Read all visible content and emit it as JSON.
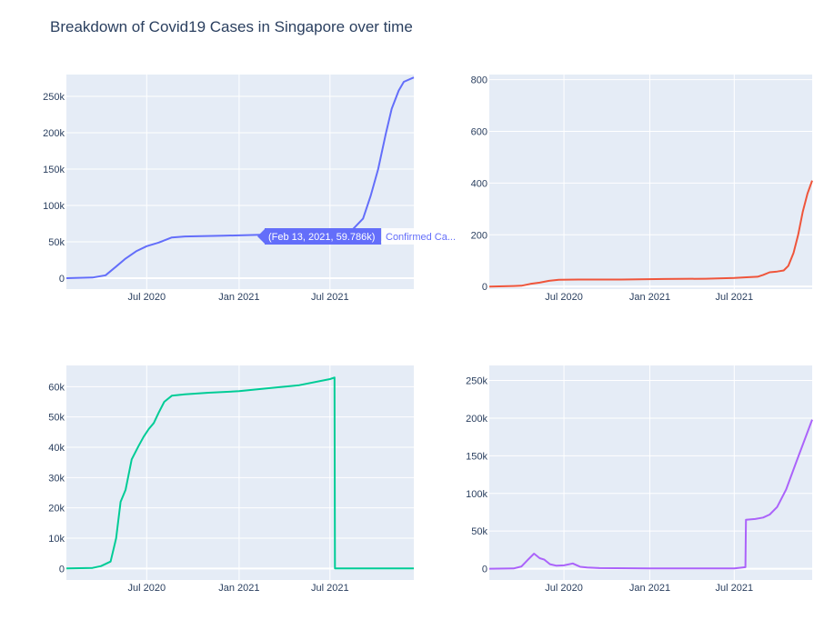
{
  "title": "Breakdown of Covid19 Cases in Singapore over time",
  "hover": {
    "label": "(Feb 13, 2021, 59.786k)",
    "series_label": "Confirmed Ca...",
    "color": "#636efa"
  },
  "chart_data": [
    {
      "type": "line",
      "panel": "top-left",
      "color": "#636efa",
      "x_ticks": [
        "Jul 2020",
        "Jan 2021",
        "Jul 2021"
      ],
      "y_ticks": [
        "0",
        "50k",
        "100k",
        "150k",
        "200k",
        "250k"
      ],
      "xlim": [
        "2020-01-23",
        "2021-12-15"
      ],
      "ylim": [
        -15000,
        280000
      ],
      "x": [
        "2020-01-23",
        "2020-03-15",
        "2020-04-10",
        "2020-05-01",
        "2020-05-20",
        "2020-06-10",
        "2020-07-01",
        "2020-07-25",
        "2020-08-20",
        "2020-09-15",
        "2020-12-01",
        "2021-02-13",
        "2021-04-01",
        "2021-06-01",
        "2021-07-15",
        "2021-08-15",
        "2021-09-05",
        "2021-09-20",
        "2021-10-05",
        "2021-10-20",
        "2021-11-01",
        "2021-11-15",
        "2021-11-25",
        "2021-12-15"
      ],
      "y": [
        0,
        900,
        4000,
        16000,
        27000,
        37000,
        44000,
        49000,
        56000,
        57400,
        58400,
        59786,
        61000,
        62300,
        64000,
        67000,
        82000,
        113000,
        150000,
        198000,
        233000,
        258000,
        270000,
        276000
      ]
    },
    {
      "type": "line",
      "panel": "top-right",
      "color": "#ef553b",
      "x_ticks": [
        "Jul 2020",
        "Jan 2021",
        "Jul 2021"
      ],
      "y_ticks": [
        "0",
        "200",
        "400",
        "600",
        "800"
      ],
      "xlim": [
        "2020-01-23",
        "2021-12-15"
      ],
      "ylim": [
        -10,
        820
      ],
      "x": [
        "2020-01-23",
        "2020-03-15",
        "2020-04-01",
        "2020-04-20",
        "2020-05-10",
        "2020-05-30",
        "2020-06-20",
        "2020-08-01",
        "2020-11-01",
        "2021-02-01",
        "2021-05-01",
        "2021-07-01",
        "2021-08-01",
        "2021-08-20",
        "2021-09-01",
        "2021-09-15",
        "2021-10-01",
        "2021-10-15",
        "2021-10-25",
        "2021-11-05",
        "2021-11-15",
        "2021-11-25",
        "2021-12-05",
        "2021-12-15"
      ],
      "y": [
        0,
        2,
        3,
        10,
        15,
        22,
        26,
        27,
        27,
        29,
        30,
        33,
        36,
        38,
        45,
        55,
        58,
        62,
        80,
        130,
        200,
        290,
        360,
        410
      ]
    },
    {
      "type": "line",
      "panel": "bottom-left",
      "color": "#00cc96",
      "x_ticks": [
        "Jul 2020",
        "Jan 2021",
        "Jul 2021"
      ],
      "y_ticks": [
        "0",
        "10k",
        "20k",
        "30k",
        "40k",
        "50k",
        "60k"
      ],
      "xlim": [
        "2020-01-23",
        "2021-12-15"
      ],
      "ylim": [
        -3800,
        67000
      ],
      "x": [
        "2020-01-23",
        "2020-03-15",
        "2020-04-01",
        "2020-04-10",
        "2020-04-20",
        "2020-05-01",
        "2020-05-10",
        "2020-05-20",
        "2020-06-01",
        "2020-06-15",
        "2020-06-25",
        "2020-07-05",
        "2020-07-15",
        "2020-07-25",
        "2020-08-05",
        "2020-08-20",
        "2020-09-15",
        "2020-11-01",
        "2021-01-01",
        "2021-03-01",
        "2021-05-01",
        "2021-07-01",
        "2021-07-10",
        "2021-07-11",
        "2021-12-15"
      ],
      "y": [
        0,
        200,
        800,
        1500,
        2300,
        10000,
        22000,
        26000,
        36000,
        40500,
        43500,
        46000,
        48000,
        51500,
        55000,
        57000,
        57500,
        58000,
        58500,
        59500,
        60500,
        62500,
        63000,
        0,
        0
      ]
    },
    {
      "type": "line",
      "panel": "bottom-right",
      "color": "#ab63fa",
      "x_ticks": [
        "Jul 2020",
        "Jan 2021",
        "Jul 2021"
      ],
      "y_ticks": [
        "0",
        "50k",
        "100k",
        "150k",
        "200k",
        "250k"
      ],
      "xlim": [
        "2020-01-23",
        "2021-12-15"
      ],
      "ylim": [
        -15000,
        270000
      ],
      "x": [
        "2020-01-23",
        "2020-03-15",
        "2020-04-01",
        "2020-04-15",
        "2020-04-28",
        "2020-05-10",
        "2020-05-20",
        "2020-06-01",
        "2020-06-15",
        "2020-07-01",
        "2020-07-20",
        "2020-08-05",
        "2020-08-20",
        "2020-09-15",
        "2021-01-01",
        "2021-05-01",
        "2021-07-01",
        "2021-07-25",
        "2021-07-26",
        "2021-08-15",
        "2021-09-01",
        "2021-09-15",
        "2021-10-01",
        "2021-10-20",
        "2021-11-10",
        "2021-12-15"
      ],
      "y": [
        0,
        300,
        3000,
        12000,
        20000,
        14000,
        12000,
        6000,
        4000,
        4500,
        7000,
        2500,
        1500,
        800,
        300,
        300,
        500,
        2000,
        65000,
        66000,
        68000,
        72000,
        82000,
        105000,
        140000,
        198000
      ]
    }
  ]
}
